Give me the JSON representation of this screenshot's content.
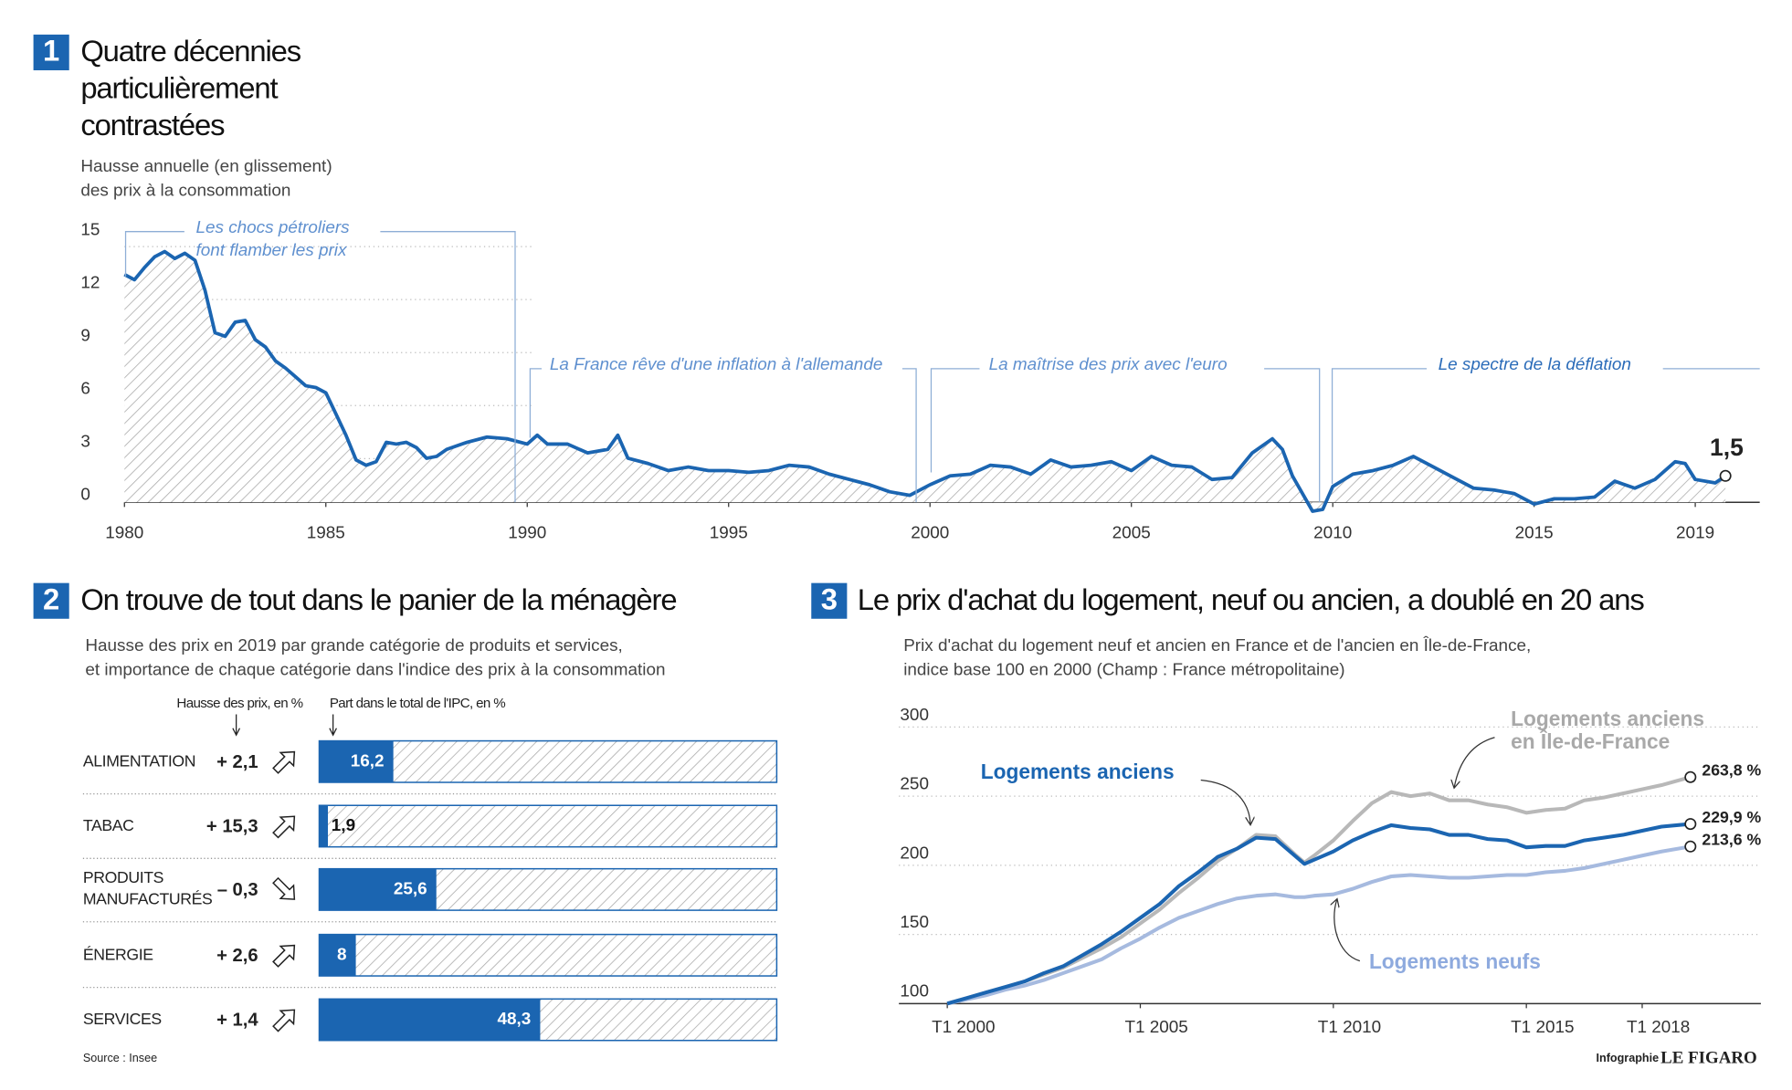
{
  "chart_data": [
    {
      "type": "line",
      "number": "1",
      "title": [
        "Quatre décennies",
        "particulièrement",
        "contrastées"
      ],
      "subtitle": [
        "Hausse annuelle (en glissement)",
        "des prix à la consommation"
      ],
      "color": "#1b65b1",
      "x": [
        1980,
        1980.25,
        1980.5,
        1980.75,
        1981,
        1981.25,
        1981.5,
        1981.75,
        1982,
        1982.25,
        1982.5,
        1982.75,
        1983,
        1983.25,
        1983.5,
        1983.75,
        1984,
        1984.25,
        1984.5,
        1984.75,
        1985,
        1985.25,
        1985.5,
        1985.75,
        1986,
        1986.25,
        1986.5,
        1986.75,
        1987,
        1987.25,
        1987.5,
        1987.75,
        1988,
        1988.5,
        1989,
        1989.5,
        1990,
        1990.25,
        1990.5,
        1991,
        1991.5,
        1992,
        1992.25,
        1992.5,
        1993,
        1993.5,
        1994,
        1994.5,
        1995,
        1995.5,
        1996,
        1996.5,
        1997,
        1997.5,
        1998,
        1998.5,
        1999,
        1999.5,
        2000,
        2000.5,
        2001,
        2001.5,
        2002,
        2002.5,
        2003,
        2003.5,
        2004,
        2004.5,
        2005,
        2005.5,
        2006,
        2006.5,
        2007,
        2007.5,
        2008,
        2008.5,
        2008.75,
        2009,
        2009.5,
        2009.75,
        2010,
        2010.5,
        2011,
        2011.5,
        2012,
        2012.5,
        2013,
        2013.5,
        2014,
        2014.5,
        2015,
        2015.5,
        2016,
        2016.5,
        2017,
        2017.5,
        2018,
        2018.5,
        2018.75,
        2019,
        2019.5,
        2019.75
      ],
      "values": [
        12.9,
        12.6,
        13.3,
        13.9,
        14.2,
        13.8,
        14.1,
        13.7,
        12,
        9.6,
        9.4,
        10.2,
        10.3,
        9.2,
        8.8,
        8.0,
        7.6,
        7.1,
        6.6,
        6.5,
        6.2,
        5.0,
        3.8,
        2.4,
        2.1,
        2.3,
        3.4,
        3.3,
        3.4,
        3.1,
        2.5,
        2.6,
        3.0,
        3.4,
        3.7,
        3.6,
        3.3,
        3.8,
        3.3,
        3.3,
        2.8,
        3.0,
        3.8,
        2.5,
        2.2,
        1.8,
        2.0,
        1.8,
        1.8,
        1.7,
        1.8,
        2.1,
        2.0,
        1.6,
        1.3,
        1.0,
        0.6,
        0.4,
        1.0,
        1.5,
        1.6,
        2.1,
        2.0,
        1.6,
        2.4,
        2.0,
        2.1,
        2.3,
        1.8,
        2.6,
        2.1,
        2.0,
        1.3,
        1.4,
        2.8,
        3.6,
        3.0,
        1.5,
        -0.5,
        -0.4,
        0.9,
        1.6,
        1.8,
        2.1,
        2.6,
        2.0,
        1.4,
        0.8,
        0.7,
        0.5,
        -0.1,
        0.2,
        0.2,
        0.3,
        1.2,
        0.8,
        1.3,
        2.3,
        2.2,
        1.3,
        1.1,
        1.5
      ],
      "end_label": "1,5",
      "xlim": [
        1980,
        2020
      ],
      "xticks": [
        1980,
        1985,
        1990,
        1995,
        2000,
        2005,
        2010,
        2015,
        2019
      ],
      "ylim": [
        0,
        15
      ],
      "yticks": [
        0,
        3,
        6,
        9,
        12,
        15
      ],
      "grid": true,
      "annotations": [
        {
          "text": [
            "Les chocs pétroliers",
            "font flamber les prix"
          ]
        },
        {
          "text": [
            "La France rêve d'une inflation à l'allemande"
          ]
        },
        {
          "text": [
            "La maîtrise des prix avec l'euro"
          ]
        },
        {
          "text": [
            "Le spectre de la déflation"
          ]
        }
      ]
    },
    {
      "type": "bar",
      "number": "2",
      "title": [
        "On trouve de tout dans le panier de la ménagère"
      ],
      "subtitle": [
        "Hausse des prix en 2019 par grande catégorie de produits et services,",
        "et importance de chaque catégorie dans l'indice des prix à la consommation"
      ],
      "categories": [
        [
          "ALIMENTATION"
        ],
        [
          "TABAC"
        ],
        [
          "PRODUITS",
          "MANUFACTURÉS"
        ],
        [
          "ÉNERGIE"
        ],
        [
          "SERVICES"
        ]
      ],
      "series": [
        {
          "name": "Hausse des prix, en %",
          "values": [
            2.1,
            15.3,
            -0.3,
            2.6,
            1.4
          ],
          "value_labels": [
            "+ 2,1",
            "+ 15,3",
            "– 0,3",
            "+ 2,6",
            "+ 1,4"
          ]
        },
        {
          "name": "Part dans le total de l'IPC, en %",
          "color": "#1b65b1",
          "values": [
            16.2,
            1.9,
            25.6,
            8,
            48.3
          ],
          "value_labels": [
            "16,2",
            "1,9",
            "25,6",
            "8",
            "48,3"
          ]
        }
      ],
      "xlim": [
        0,
        100
      ]
    },
    {
      "type": "line",
      "number": "3",
      "title": [
        "Le prix d'achat du logement, neuf ou ancien, a doublé en 20 ans"
      ],
      "subtitle": [
        "Prix d'achat du logement neuf et ancien en France et de l'ancien en Île-de-France,",
        "indice base 100 en 2000 (Champ : France métropolitaine)"
      ],
      "x": [
        2000,
        2000.5,
        2001,
        2001.5,
        2002,
        2002.5,
        2003,
        2003.5,
        2004,
        2004.5,
        2005,
        2005.5,
        2006,
        2006.5,
        2007,
        2007.5,
        2008,
        2008.5,
        2009,
        2009.25,
        2009.5,
        2010,
        2010.5,
        2011,
        2011.5,
        2012,
        2012.5,
        2013,
        2013.5,
        2014,
        2014.5,
        2015,
        2015.5,
        2016,
        2016.5,
        2017,
        2017.5,
        2018,
        2018.5,
        2019.25
      ],
      "series": [
        {
          "name": [
            "Logements anciens en Île-de-France"
          ],
          "color": "#b8b8b8",
          "end_label": "263,8 %",
          "values": [
            100,
            104,
            108,
            112,
            116,
            121,
            126,
            133,
            140,
            148,
            158,
            168,
            180,
            191,
            203,
            212,
            222,
            221,
            208,
            202,
            207,
            218,
            232,
            245,
            253,
            250,
            252,
            247,
            247,
            244,
            242,
            238,
            240,
            241,
            247,
            249,
            252,
            255,
            258,
            263.8
          ]
        },
        {
          "name": [
            "Logements neufs"
          ],
          "color": "#a6badf",
          "end_label": "213,6 %",
          "values": [
            100,
            103,
            106,
            110,
            113,
            117,
            122,
            127,
            132,
            140,
            147,
            155,
            162,
            167,
            172,
            176,
            178,
            179,
            177,
            177,
            178,
            179,
            183,
            188,
            192,
            193,
            192,
            191,
            191,
            192,
            193,
            193,
            195,
            196,
            198,
            201,
            204,
            207,
            210,
            213.6
          ]
        },
        {
          "name": [
            "Logements anciens"
          ],
          "color": "#1b65b1",
          "end_label": "229,9 %",
          "values": [
            100,
            104,
            108,
            112,
            116,
            122,
            127,
            135,
            143,
            152,
            162,
            172,
            185,
            195,
            206,
            212,
            220,
            219,
            207,
            201,
            204,
            210,
            218,
            224,
            229,
            227,
            226,
            222,
            222,
            219,
            218,
            213,
            214,
            214,
            218,
            220,
            222,
            225,
            228,
            229.9
          ]
        }
      ],
      "xlim": [
        2000,
        2020
      ],
      "xticks": [
        {
          "value": 2000,
          "label": "T1 2000"
        },
        {
          "value": 2005,
          "label": "T1 2005"
        },
        {
          "value": 2010,
          "label": "T1 2010"
        },
        {
          "value": 2015,
          "label": "T1 2015"
        },
        {
          "value": 2018,
          "label": "T1 2018"
        }
      ],
      "ylim": [
        100,
        300
      ],
      "yticks": [
        100,
        150,
        200,
        250,
        300
      ],
      "grid": true
    }
  ],
  "source": "Source : Insee",
  "credit": {
    "prefix": "Infographie",
    "brand": "LE FIGARO"
  }
}
